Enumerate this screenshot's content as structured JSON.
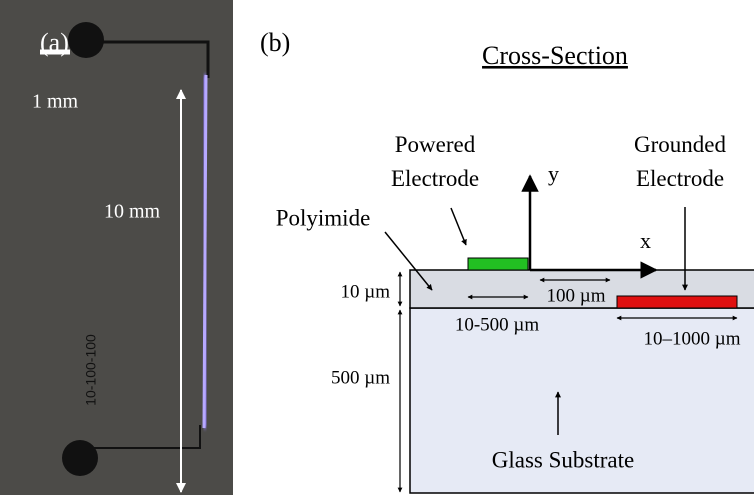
{
  "panel_a": {
    "label": "(a)",
    "scale_bar": "1 mm",
    "length": "10 mm",
    "device_id": "10-100-100"
  },
  "panel_b": {
    "label": "(b)",
    "title": "Cross-Section",
    "labels": {
      "powered": "Powered Electrode",
      "grounded": "Grounded Electrode",
      "polyimide": "Polyimide",
      "y_axis": "y",
      "x_axis": "x",
      "polyimide_thickness": "10 µm",
      "gap": "100 µm",
      "powered_width": "10-500 µm",
      "grounded_width": "10–1000 µm",
      "glass_thickness": "500 µm",
      "glass": "Glass Substrate"
    }
  }
}
